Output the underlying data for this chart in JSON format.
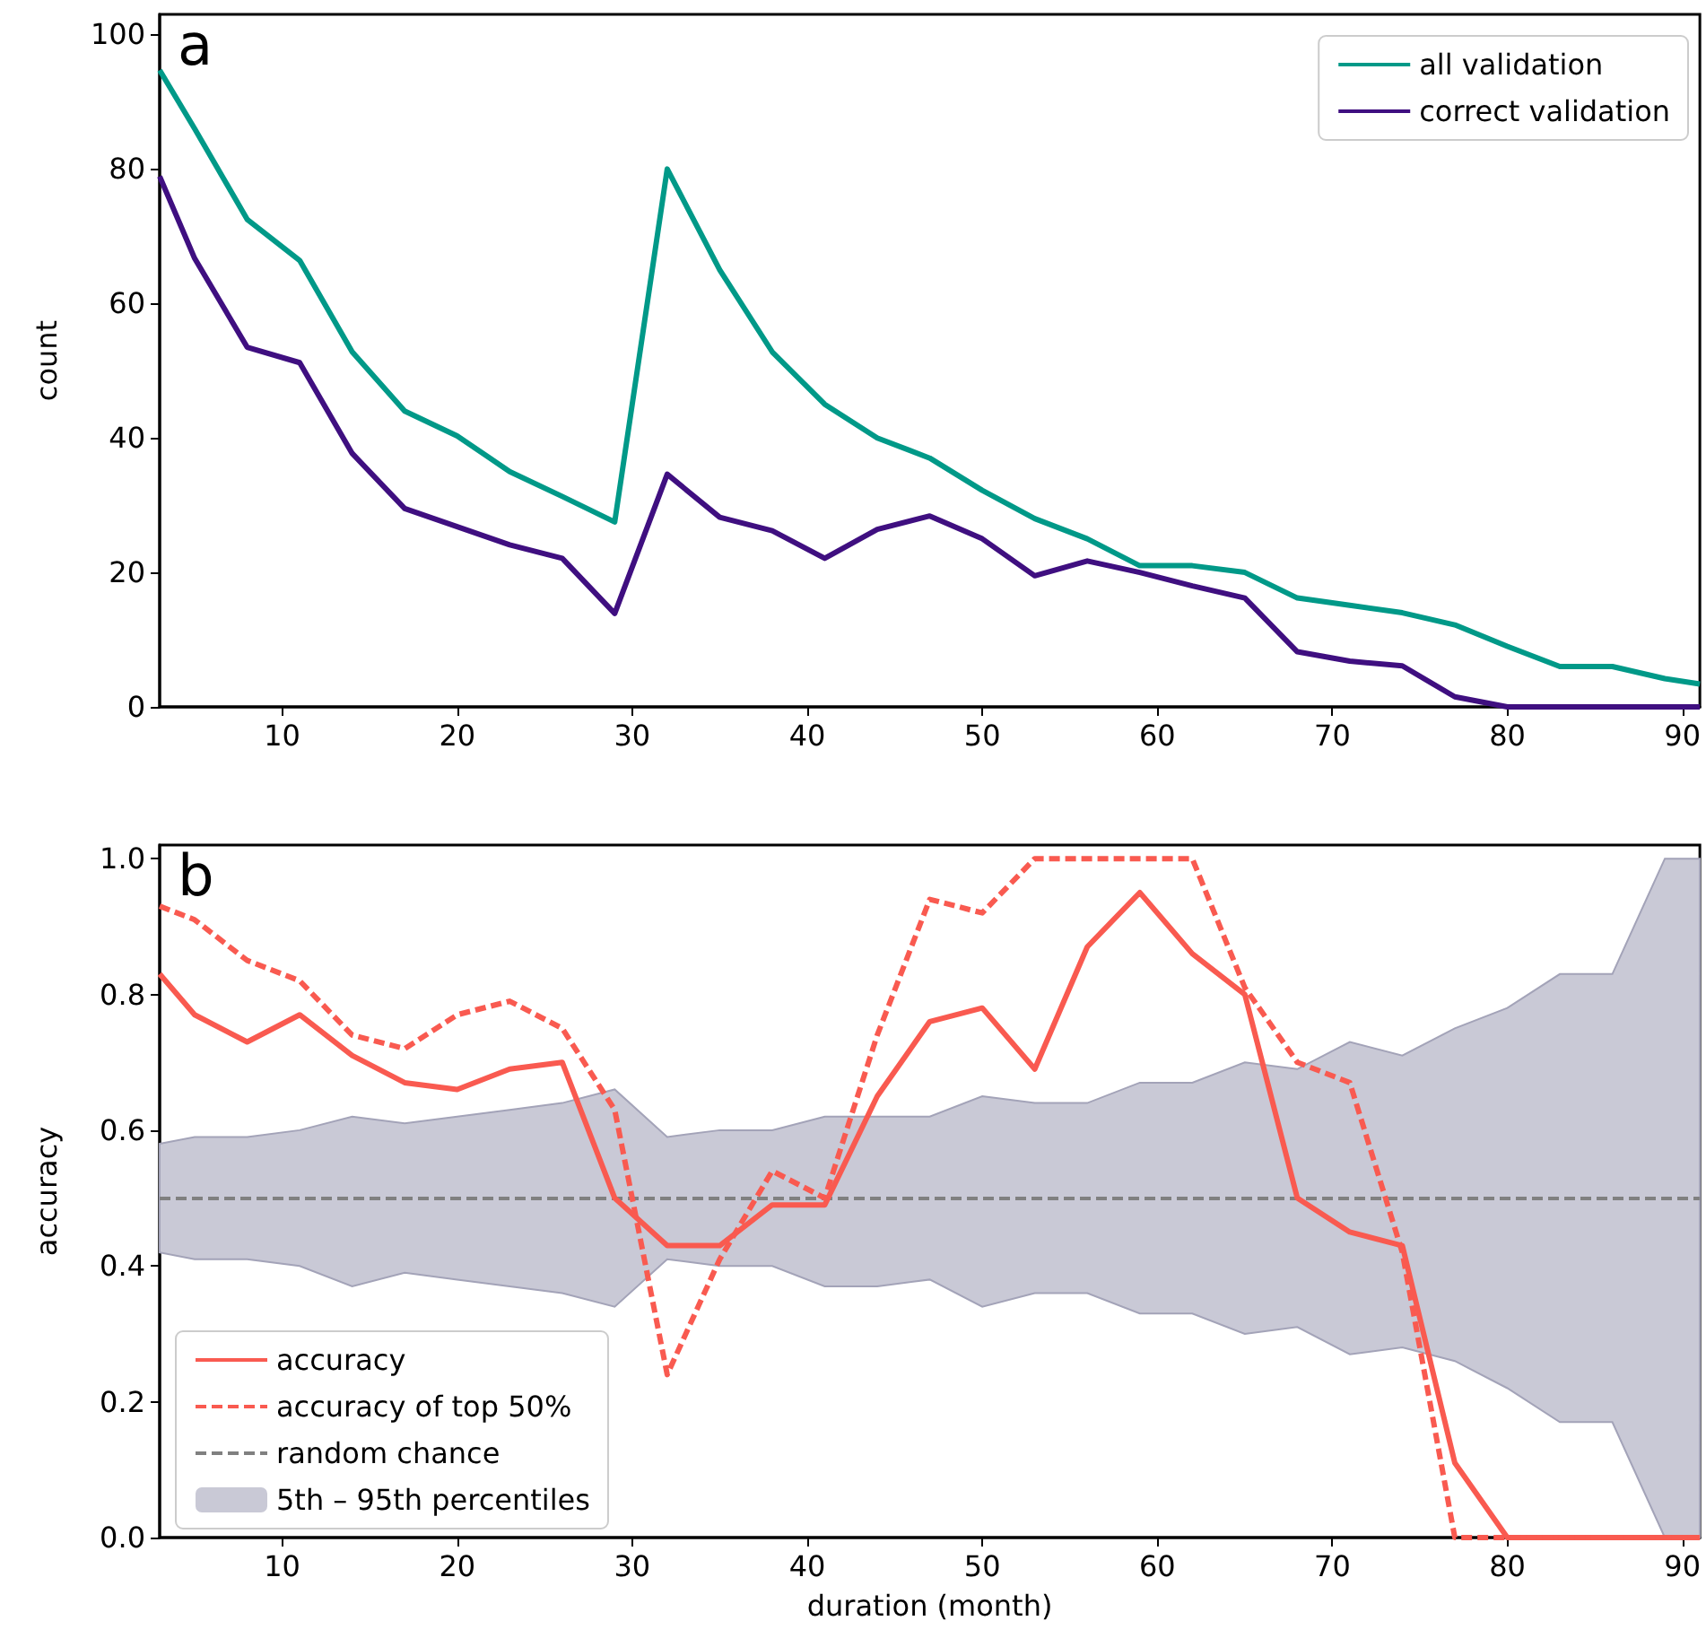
{
  "chart_data": [
    {
      "type": "line",
      "title": "a",
      "ylabel": "count",
      "xlim": [
        3,
        91
      ],
      "xticks": [
        10,
        20,
        30,
        40,
        50,
        60,
        70,
        80,
        90
      ],
      "ylim": [
        0,
        103
      ],
      "yticks": [
        0,
        20,
        40,
        60,
        80,
        100
      ],
      "legend": "top right",
      "grid": false,
      "x": [
        3,
        5,
        8,
        11,
        14,
        17,
        20,
        23,
        26,
        29,
        32,
        35,
        38,
        41,
        44,
        47,
        50,
        53,
        56,
        59,
        62,
        65,
        68,
        71,
        74,
        77,
        80,
        83,
        86,
        89,
        91
      ],
      "series": [
        {
          "name": "all validation",
          "color": "#009988",
          "values": [
            94.7,
            86,
            72.5,
            66.4,
            52.8,
            44,
            40.3,
            35,
            31.3,
            27.5,
            80,
            65,
            52.8,
            45,
            40,
            37,
            32.2,
            28,
            25,
            21,
            21,
            20,
            16.2,
            15.1,
            14,
            12.2,
            9,
            6,
            6,
            4.2,
            3.4
          ]
        },
        {
          "name": "correct validation",
          "color": "#3f0f80",
          "values": [
            78.9,
            66.7,
            53.5,
            51.2,
            37.7,
            29.5,
            26.8,
            24.1,
            22.1,
            13.9,
            34.6,
            28.2,
            26.2,
            22.1,
            26.4,
            28.4,
            25,
            19.5,
            21.7,
            20,
            18,
            16.2,
            8.2,
            6.8,
            6.1,
            1.5,
            0,
            0,
            0,
            0,
            0
          ]
        }
      ]
    },
    {
      "type": "line",
      "title": "b",
      "xlabel": "duration (month)",
      "ylabel": "accuracy",
      "xlim": [
        3,
        91
      ],
      "xticks": [
        10,
        20,
        30,
        40,
        50,
        60,
        70,
        80,
        90
      ],
      "ylim": [
        0,
        1.02
      ],
      "yticks": [
        {
          "value": 0,
          "label": "0.0"
        },
        0.2,
        0.4,
        0.6,
        0.8,
        {
          "value": 1,
          "label": "1.0"
        }
      ],
      "legend": "bottom left",
      "grid": false,
      "x": [
        3,
        5,
        8,
        11,
        14,
        17,
        20,
        23,
        26,
        29,
        32,
        35,
        38,
        41,
        44,
        47,
        50,
        53,
        56,
        59,
        62,
        65,
        68,
        71,
        74,
        77,
        80,
        83,
        86,
        89,
        91
      ],
      "series": [
        {
          "name": "accuracy",
          "color": "#f95a50",
          "line_style": "solid",
          "values": [
            0.83,
            0.77,
            0.73,
            0.77,
            0.71,
            0.67,
            0.66,
            0.69,
            0.7,
            0.5,
            0.43,
            0.43,
            0.49,
            0.49,
            0.65,
            0.76,
            0.78,
            0.69,
            0.87,
            0.95,
            0.86,
            0.8,
            0.5,
            0.45,
            0.43,
            0.11,
            0,
            0,
            0,
            0,
            0
          ]
        },
        {
          "name": "accuracy of top 50%",
          "color": "#f95a50",
          "line_style": "dashed",
          "values": [
            0.93,
            0.91,
            0.85,
            0.82,
            0.74,
            0.72,
            0.77,
            0.79,
            0.75,
            0.63,
            0.24,
            0.41,
            0.54,
            0.5,
            0.74,
            0.94,
            0.92,
            1,
            1,
            1,
            1,
            0.81,
            0.7,
            0.67,
            0.42,
            0,
            0,
            0,
            0,
            0,
            0
          ]
        },
        {
          "name": "5th – 95th percentiles",
          "type": "area",
          "color": "#c9c9d6",
          "values": [
            null,
            null,
            null,
            null,
            null,
            null,
            null,
            null,
            null,
            null,
            null,
            null,
            null,
            null,
            null,
            null,
            null,
            null,
            null,
            null,
            null,
            null,
            null,
            null,
            null,
            null,
            null,
            null,
            null,
            null,
            null
          ],
          "lower": [
            0.42,
            0.41,
            0.41,
            0.4,
            0.37,
            0.39,
            0.38,
            0.37,
            0.36,
            0.34,
            0.41,
            0.4,
            0.4,
            0.37,
            0.37,
            0.38,
            0.34,
            0.36,
            0.36,
            0.33,
            0.33,
            0.3,
            0.31,
            0.27,
            0.28,
            0.26,
            0.22,
            0.17,
            0.17,
            0,
            0
          ],
          "upper": [
            0.58,
            0.59,
            0.59,
            0.6,
            0.62,
            0.61,
            0.62,
            0.63,
            0.64,
            0.66,
            0.59,
            0.6,
            0.6,
            0.62,
            0.62,
            0.62,
            0.65,
            0.64,
            0.64,
            0.67,
            0.67,
            0.7,
            0.69,
            0.73,
            0.71,
            0.75,
            0.78,
            0.83,
            0.83,
            1,
            1
          ]
        }
      ],
      "ref_lines": [
        {
          "axis": "y",
          "value": 0.5,
          "label": "random chance",
          "color": "#808080",
          "line_style": "dashed"
        }
      ]
    }
  ]
}
